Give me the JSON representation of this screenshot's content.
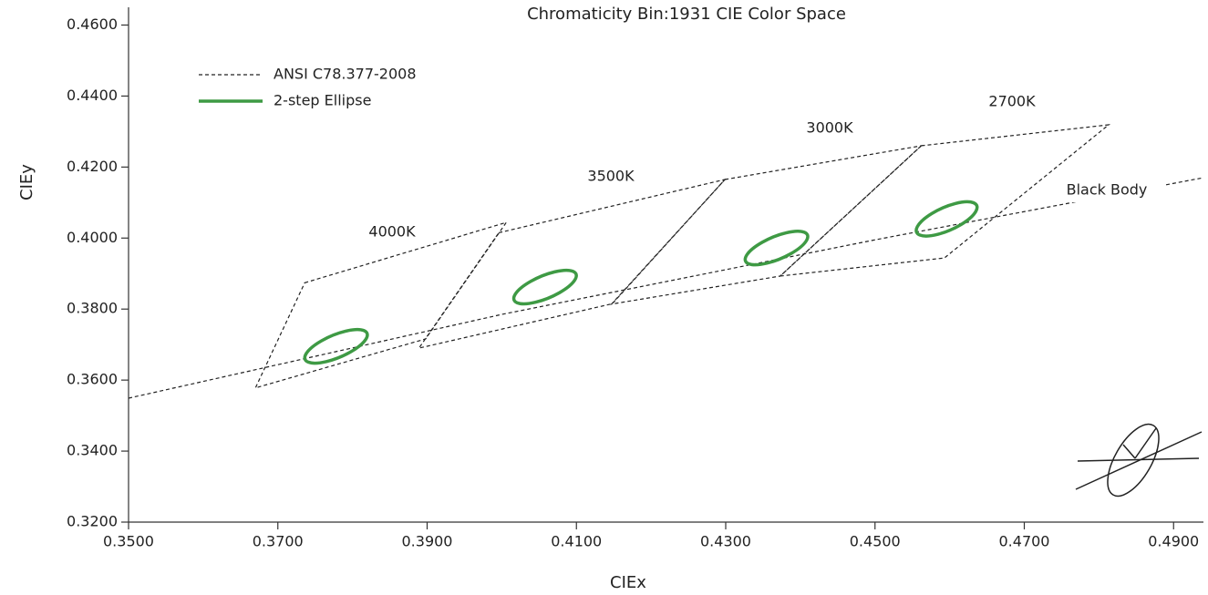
{
  "chart_data": {
    "type": "bins",
    "title": "Chromaticity Bin:1931 CIE Color Space",
    "xlabel": "CIEx",
    "ylabel": "CIEy",
    "xlim": [
      0.35,
      0.494
    ],
    "ylim": [
      0.32,
      0.465
    ],
    "xticks": [
      {
        "value": 0.35,
        "label": "0.3500"
      },
      {
        "value": 0.37,
        "label": "0.3700"
      },
      {
        "value": 0.39,
        "label": "0.3900"
      },
      {
        "value": 0.41,
        "label": "0.4100"
      },
      {
        "value": 0.43,
        "label": "0.4300"
      },
      {
        "value": 0.45,
        "label": "0.4500"
      },
      {
        "value": 0.47,
        "label": "0.4700"
      },
      {
        "value": 0.49,
        "label": "0.4900"
      }
    ],
    "yticks": [
      {
        "value": 0.32,
        "label": "0.3200"
      },
      {
        "value": 0.34,
        "label": "0.3400"
      },
      {
        "value": 0.36,
        "label": "0.3600"
      },
      {
        "value": 0.38,
        "label": "0.3800"
      },
      {
        "value": 0.4,
        "label": "0.4000"
      },
      {
        "value": 0.42,
        "label": "0.4200"
      },
      {
        "value": 0.44,
        "label": "0.4400"
      },
      {
        "value": 0.46,
        "label": "0.4600"
      }
    ],
    "series": [
      {
        "name": "ANSI C78.377-2008",
        "color": "#222222",
        "style": "dashed",
        "bins": [
          {
            "label": "4000K",
            "x": [
              0.3736,
              0.4006,
              0.3898,
              0.367
            ],
            "y": [
              0.3874,
              0.4044,
              0.3716,
              0.3578
            ]
          },
          {
            "label": "3500K",
            "x": [
              0.3996,
              0.4299,
              0.4148,
              0.3889
            ],
            "y": [
              0.4015,
              0.4165,
              0.3815,
              0.369
            ]
          },
          {
            "label": "3000K",
            "x": [
              0.4299,
              0.4562,
              0.4373,
              0.4147
            ],
            "y": [
              0.4165,
              0.426,
              0.3893,
              0.3814
            ]
          },
          {
            "label": "2700K",
            "x": [
              0.4562,
              0.4813,
              0.4593,
              0.4373
            ],
            "y": [
              0.426,
              0.4319,
              0.3944,
              0.3893
            ]
          }
        ]
      },
      {
        "name": "2-step Ellipse",
        "color": "#3e9a44",
        "style": "solid",
        "ellipses": [
          {
            "cx": 0.3778,
            "cy": 0.3695,
            "a": 0.0058,
            "b": 0.0025,
            "angle": 50
          },
          {
            "cx": 0.4058,
            "cy": 0.3862,
            "a": 0.0058,
            "b": 0.0025,
            "angle": 50
          },
          {
            "cx": 0.4368,
            "cy": 0.3972,
            "a": 0.0058,
            "b": 0.0025,
            "angle": 50
          },
          {
            "cx": 0.4596,
            "cy": 0.4054,
            "a": 0.0058,
            "b": 0.0025,
            "angle": 52
          }
        ]
      }
    ],
    "black_body": {
      "label": "Black Body",
      "x": [
        0.35,
        0.4,
        0.45,
        0.494
      ],
      "y": [
        0.3549,
        0.3785,
        0.3995,
        0.417
      ]
    }
  }
}
